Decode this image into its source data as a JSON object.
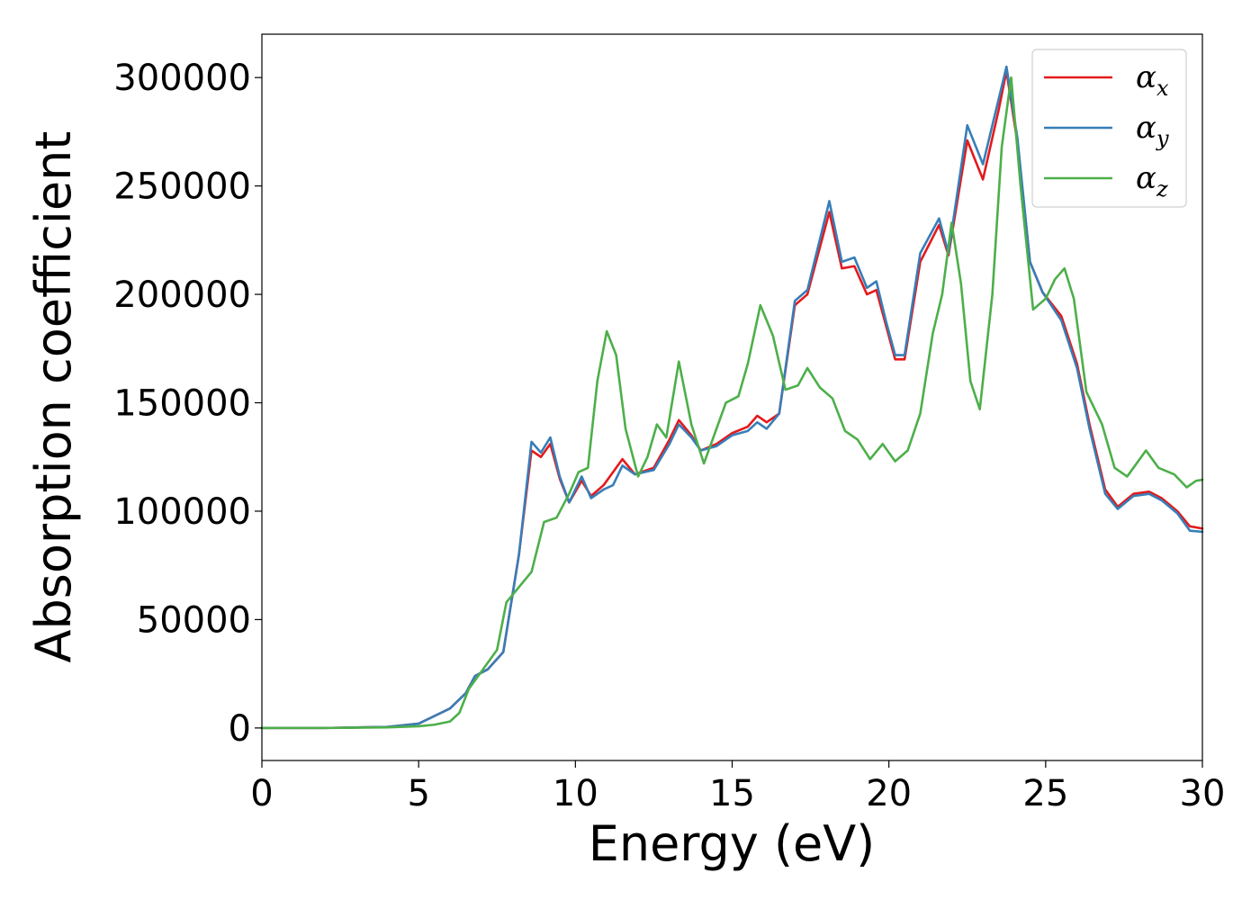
{
  "chart_data": {
    "type": "line",
    "xlabel": "Energy (eV)",
    "ylabel": "Absorption coefficient",
    "xlim": [
      0,
      30
    ],
    "ylim": [
      -15000,
      320000
    ],
    "xticks": [
      "0",
      "5",
      "10",
      "15",
      "20",
      "25",
      "30"
    ],
    "yticks": [
      "0",
      "50000",
      "100000",
      "150000",
      "200000",
      "250000",
      "300000"
    ],
    "grid": false,
    "legend": {
      "placement": "top-right",
      "entries": [
        {
          "base": "α",
          "sub": "x"
        },
        {
          "base": "α",
          "sub": "y"
        },
        {
          "base": "α",
          "sub": "z"
        }
      ]
    },
    "series": [
      {
        "name": "αx",
        "color": "#e41a1c",
        "points": [
          [
            0,
            0
          ],
          [
            2,
            0
          ],
          [
            4,
            500
          ],
          [
            5,
            2000
          ],
          [
            5.5,
            5500
          ],
          [
            6,
            9000
          ],
          [
            6.5,
            16000
          ],
          [
            6.8,
            24000
          ],
          [
            7.2,
            27000
          ],
          [
            7.7,
            35000
          ],
          [
            8.2,
            80000
          ],
          [
            8.6,
            128000
          ],
          [
            8.9,
            125000
          ],
          [
            9.2,
            131000
          ],
          [
            9.5,
            115000
          ],
          [
            9.8,
            104000
          ],
          [
            10.2,
            114000
          ],
          [
            10.5,
            107000
          ],
          [
            10.9,
            112000
          ],
          [
            11.2,
            118000
          ],
          [
            11.5,
            124000
          ],
          [
            11.9,
            117000
          ],
          [
            12.5,
            120000
          ],
          [
            13.0,
            133000
          ],
          [
            13.3,
            142000
          ],
          [
            13.7,
            135000
          ],
          [
            14.0,
            128000
          ],
          [
            14.5,
            131000
          ],
          [
            15.0,
            136000
          ],
          [
            15.5,
            139000
          ],
          [
            15.8,
            144000
          ],
          [
            16.1,
            141000
          ],
          [
            16.5,
            145000
          ],
          [
            17.0,
            195000
          ],
          [
            17.4,
            200000
          ],
          [
            18.1,
            238000
          ],
          [
            18.5,
            212000
          ],
          [
            18.9,
            213000
          ],
          [
            19.3,
            200000
          ],
          [
            19.6,
            202000
          ],
          [
            19.9,
            186000
          ],
          [
            20.2,
            170000
          ],
          [
            20.5,
            170000
          ],
          [
            21.0,
            215000
          ],
          [
            21.6,
            232000
          ],
          [
            21.9,
            218000
          ],
          [
            22.5,
            271000
          ],
          [
            23.0,
            253000
          ],
          [
            23.5,
            285000
          ],
          [
            23.75,
            303000
          ],
          [
            24.1,
            270000
          ],
          [
            24.5,
            215000
          ],
          [
            24.9,
            201000
          ],
          [
            25.5,
            190000
          ],
          [
            26.0,
            168000
          ],
          [
            26.4,
            140000
          ],
          [
            26.9,
            110000
          ],
          [
            27.3,
            102000
          ],
          [
            27.8,
            108000
          ],
          [
            28.3,
            109000
          ],
          [
            28.7,
            106000
          ],
          [
            29.2,
            100000
          ],
          [
            29.6,
            93000
          ],
          [
            30.0,
            92000
          ]
        ]
      },
      {
        "name": "αy",
        "color": "#377eb8",
        "points": [
          [
            0,
            0
          ],
          [
            2,
            0
          ],
          [
            4,
            500
          ],
          [
            5,
            2000
          ],
          [
            5.5,
            5500
          ],
          [
            6,
            9000
          ],
          [
            6.5,
            16000
          ],
          [
            6.8,
            24000
          ],
          [
            7.2,
            27000
          ],
          [
            7.7,
            35000
          ],
          [
            8.2,
            80000
          ],
          [
            8.6,
            132000
          ],
          [
            8.9,
            127000
          ],
          [
            9.2,
            134000
          ],
          [
            9.5,
            116000
          ],
          [
            9.8,
            104000
          ],
          [
            10.2,
            116000
          ],
          [
            10.5,
            106000
          ],
          [
            10.9,
            110000
          ],
          [
            11.2,
            112000
          ],
          [
            11.5,
            121000
          ],
          [
            11.9,
            117000
          ],
          [
            12.5,
            119000
          ],
          [
            13.0,
            131000
          ],
          [
            13.3,
            140000
          ],
          [
            13.7,
            134000
          ],
          [
            14.0,
            128000
          ],
          [
            14.5,
            130000
          ],
          [
            15.0,
            135000
          ],
          [
            15.5,
            137000
          ],
          [
            15.8,
            141000
          ],
          [
            16.1,
            138000
          ],
          [
            16.5,
            145000
          ],
          [
            17.0,
            197000
          ],
          [
            17.4,
            202000
          ],
          [
            18.1,
            243000
          ],
          [
            18.5,
            215000
          ],
          [
            18.9,
            217000
          ],
          [
            19.3,
            203000
          ],
          [
            19.6,
            206000
          ],
          [
            19.9,
            188000
          ],
          [
            20.2,
            172000
          ],
          [
            20.5,
            172000
          ],
          [
            21.0,
            219000
          ],
          [
            21.6,
            235000
          ],
          [
            21.9,
            219000
          ],
          [
            22.5,
            278000
          ],
          [
            23.0,
            260000
          ],
          [
            23.5,
            290000
          ],
          [
            23.75,
            305000
          ],
          [
            24.1,
            272000
          ],
          [
            24.5,
            215000
          ],
          [
            24.9,
            201000
          ],
          [
            25.5,
            188000
          ],
          [
            26.0,
            166000
          ],
          [
            26.4,
            138000
          ],
          [
            26.9,
            108000
          ],
          [
            27.3,
            101000
          ],
          [
            27.8,
            107000
          ],
          [
            28.3,
            108000
          ],
          [
            28.7,
            105000
          ],
          [
            29.2,
            99000
          ],
          [
            29.6,
            91000
          ],
          [
            30.0,
            90500
          ]
        ]
      },
      {
        "name": "αz",
        "color": "#4daf4a",
        "points": [
          [
            0,
            0
          ],
          [
            2,
            0
          ],
          [
            4,
            300
          ],
          [
            5,
            800
          ],
          [
            5.5,
            1500
          ],
          [
            6,
            3000
          ],
          [
            6.3,
            7000
          ],
          [
            6.6,
            18000
          ],
          [
            7.0,
            26000
          ],
          [
            7.5,
            36000
          ],
          [
            7.8,
            58000
          ],
          [
            8.2,
            65000
          ],
          [
            8.6,
            72000
          ],
          [
            9.0,
            95000
          ],
          [
            9.4,
            97000
          ],
          [
            9.8,
            108000
          ],
          [
            10.1,
            118000
          ],
          [
            10.4,
            120000
          ],
          [
            10.7,
            160000
          ],
          [
            11.0,
            183000
          ],
          [
            11.3,
            172000
          ],
          [
            11.6,
            138000
          ],
          [
            12.0,
            116000
          ],
          [
            12.3,
            125000
          ],
          [
            12.6,
            140000
          ],
          [
            12.9,
            134000
          ],
          [
            13.3,
            169000
          ],
          [
            13.7,
            140000
          ],
          [
            14.1,
            122000
          ],
          [
            14.4,
            134000
          ],
          [
            14.8,
            150000
          ],
          [
            15.2,
            153000
          ],
          [
            15.5,
            168000
          ],
          [
            15.9,
            195000
          ],
          [
            16.3,
            181000
          ],
          [
            16.7,
            156000
          ],
          [
            17.1,
            158000
          ],
          [
            17.4,
            166000
          ],
          [
            17.8,
            157000
          ],
          [
            18.2,
            152000
          ],
          [
            18.6,
            137000
          ],
          [
            19.0,
            133000
          ],
          [
            19.4,
            124000
          ],
          [
            19.8,
            131000
          ],
          [
            20.2,
            123000
          ],
          [
            20.6,
            128000
          ],
          [
            21.0,
            145000
          ],
          [
            21.4,
            182000
          ],
          [
            21.7,
            200000
          ],
          [
            22.0,
            233000
          ],
          [
            22.3,
            205000
          ],
          [
            22.6,
            160000
          ],
          [
            22.9,
            147000
          ],
          [
            23.3,
            200000
          ],
          [
            23.6,
            268000
          ],
          [
            23.9,
            300000
          ],
          [
            24.2,
            250000
          ],
          [
            24.6,
            193000
          ],
          [
            25.0,
            198000
          ],
          [
            25.3,
            207000
          ],
          [
            25.6,
            212000
          ],
          [
            25.9,
            198000
          ],
          [
            26.3,
            155000
          ],
          [
            26.8,
            140000
          ],
          [
            27.2,
            120000
          ],
          [
            27.6,
            116000
          ],
          [
            28.2,
            128000
          ],
          [
            28.6,
            120000
          ],
          [
            29.1,
            117000
          ],
          [
            29.5,
            111000
          ],
          [
            29.8,
            114000
          ],
          [
            30.0,
            114500
          ]
        ]
      }
    ]
  }
}
